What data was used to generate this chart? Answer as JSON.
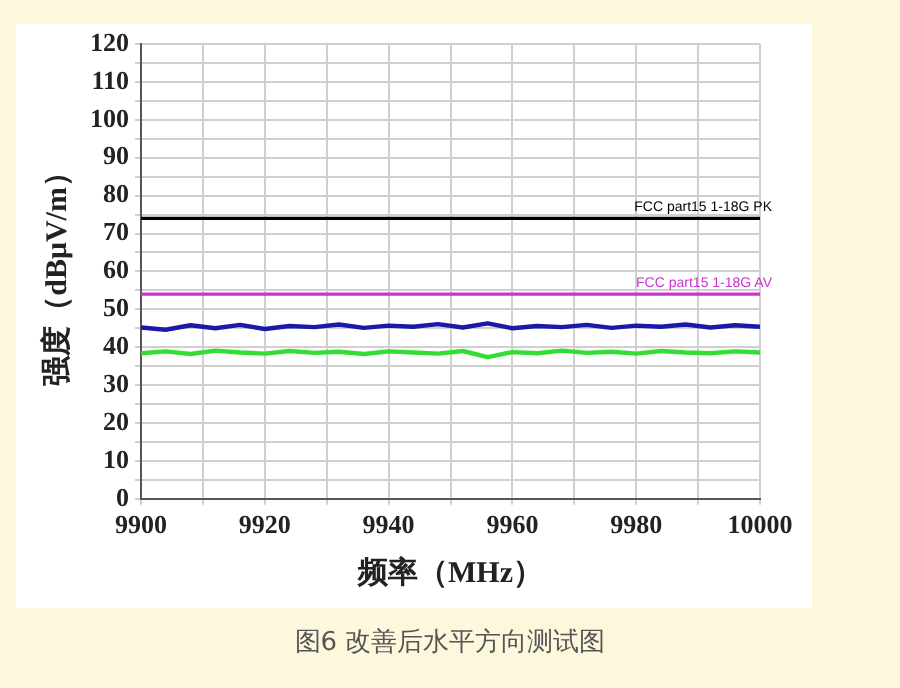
{
  "chart_data": {
    "type": "line",
    "xlabel": "频率（MHz）",
    "ylabel": "强度（dBμV/m）",
    "x": [
      9900,
      9904,
      9908,
      9912,
      9916,
      9920,
      9924,
      9928,
      9932,
      9936,
      9940,
      9944,
      9948,
      9952,
      9956,
      9960,
      9964,
      9968,
      9972,
      9976,
      9980,
      9984,
      9988,
      9992,
      9996,
      10000
    ],
    "series": [
      {
        "color": "#1a1aa8",
        "values": [
          45.2,
          44.6,
          45.8,
          45.0,
          45.9,
          44.8,
          45.6,
          45.3,
          46.0,
          45.1,
          45.7,
          45.4,
          46.1,
          45.2,
          46.3,
          45.0,
          45.6,
          45.3,
          45.9,
          45.1,
          45.7,
          45.4,
          46.0,
          45.2,
          45.8,
          45.4
        ]
      },
      {
        "color": "#33dd33",
        "values": [
          38.4,
          38.9,
          38.2,
          39.1,
          38.6,
          38.3,
          39.0,
          38.5,
          38.8,
          38.2,
          38.9,
          38.6,
          38.3,
          39.0,
          37.4,
          38.7,
          38.4,
          39.1,
          38.5,
          38.8,
          38.3,
          39.0,
          38.6,
          38.4,
          38.9,
          38.6
        ]
      }
    ],
    "xlim": [
      9900,
      10000
    ],
    "xticks": [
      9900,
      {
        "value": 9910,
        "label": null
      },
      9920,
      {
        "value": 9930,
        "label": null
      },
      9940,
      {
        "value": 9950,
        "label": null
      },
      9960,
      {
        "value": 9970,
        "label": null
      },
      9980,
      {
        "value": 9990,
        "label": null
      },
      10000
    ],
    "ylim": [
      0,
      120
    ],
    "yticks": [
      0,
      {
        "value": 5,
        "label": null
      },
      10,
      {
        "value": 15,
        "label": null
      },
      20,
      {
        "value": 25,
        "label": null
      },
      30,
      {
        "value": 35,
        "label": null
      },
      40,
      {
        "value": 45,
        "label": null
      },
      50,
      {
        "value": 55,
        "label": null
      },
      60,
      {
        "value": 65,
        "label": null
      },
      70,
      {
        "value": 75,
        "label": null
      },
      80,
      {
        "value": 85,
        "label": null
      },
      90,
      {
        "value": 95,
        "label": null
      },
      100,
      {
        "value": 105,
        "label": null
      },
      110,
      {
        "value": 115,
        "label": null
      },
      120
    ],
    "ref_lines": [
      {
        "axis": "y",
        "value": 74,
        "label": "FCC part15 1-18G PK",
        "color": "#000000"
      },
      {
        "axis": "y",
        "value": 54,
        "label": "FCC part15 1-18G AV",
        "color": "#cc33cc"
      }
    ],
    "annotations": [
      "图6 改善后水平方向测试图"
    ],
    "grid": true,
    "legend": false,
    "marker": "none",
    "line_style": "solid"
  }
}
